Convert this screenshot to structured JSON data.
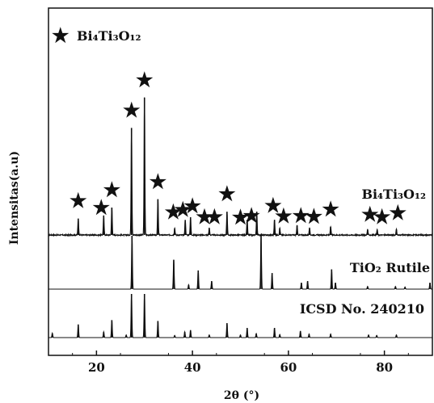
{
  "chart_data": {
    "type": "line",
    "xlabel": "2θ (°)",
    "ylabel": "Intensitas(a.u)",
    "xlim": [
      10,
      90
    ],
    "x_ticks": [
      20,
      40,
      60,
      80
    ],
    "grid": false,
    "legend": {
      "position": "top-left",
      "marker": "★",
      "label": "Bi₄Ti₃O₁₂"
    },
    "series": [
      {
        "name": "Bi₄Ti₃O₁₂",
        "baseline": 0,
        "peaks": [
          [
            16.2,
            12
          ],
          [
            21.5,
            14
          ],
          [
            23.2,
            20
          ],
          [
            27.3,
            78
          ],
          [
            30.0,
            100
          ],
          [
            32.8,
            26
          ],
          [
            36.3,
            5
          ],
          [
            38.5,
            11
          ],
          [
            39.6,
            13
          ],
          [
            43.5,
            5
          ],
          [
            47.2,
            17
          ],
          [
            51.4,
            11
          ],
          [
            53.4,
            17
          ],
          [
            57.1,
            11
          ],
          [
            58.2,
            5
          ],
          [
            61.8,
            7
          ],
          [
            64.4,
            5
          ],
          [
            68.8,
            6
          ],
          [
            76.5,
            4
          ],
          [
            78.5,
            4
          ],
          [
            82.5,
            4
          ]
        ],
        "star_positions": [
          16.2,
          21.0,
          23.2,
          27.3,
          30.0,
          32.8,
          36.0,
          38.0,
          40.0,
          42.5,
          44.6,
          47.2,
          50.0,
          52.3,
          56.8,
          59.0,
          62.6,
          65.3,
          68.8,
          77.0,
          79.5,
          82.8
        ]
      },
      {
        "name": "TiO₂ Rutile",
        "baseline": 0,
        "peaks": [
          [
            27.4,
            100
          ],
          [
            36.1,
            55
          ],
          [
            39.2,
            8
          ],
          [
            41.2,
            35
          ],
          [
            44.0,
            15
          ],
          [
            54.3,
            100
          ],
          [
            56.6,
            30
          ],
          [
            62.7,
            12
          ],
          [
            64.0,
            15
          ],
          [
            69.0,
            37
          ],
          [
            69.8,
            12
          ],
          [
            76.5,
            5
          ],
          [
            82.3,
            5
          ],
          [
            84.3,
            4
          ],
          [
            89.5,
            12
          ]
        ]
      },
      {
        "name": "ICSD No. 240210",
        "baseline": 0,
        "peaks": [
          [
            10.8,
            10
          ],
          [
            16.2,
            30
          ],
          [
            21.5,
            13
          ],
          [
            23.2,
            40
          ],
          [
            26.2,
            6
          ],
          [
            27.3,
            100
          ],
          [
            30.0,
            100
          ],
          [
            32.8,
            38
          ],
          [
            36.3,
            5
          ],
          [
            38.4,
            13
          ],
          [
            39.6,
            17
          ],
          [
            43.5,
            6
          ],
          [
            47.2,
            33
          ],
          [
            50.0,
            6
          ],
          [
            51.4,
            22
          ],
          [
            53.3,
            9
          ],
          [
            57.1,
            22
          ],
          [
            58.2,
            7
          ],
          [
            62.5,
            15
          ],
          [
            64.3,
            8
          ],
          [
            68.8,
            8
          ],
          [
            76.7,
            6
          ],
          [
            78.4,
            5
          ],
          [
            82.5,
            6
          ]
        ]
      }
    ]
  }
}
